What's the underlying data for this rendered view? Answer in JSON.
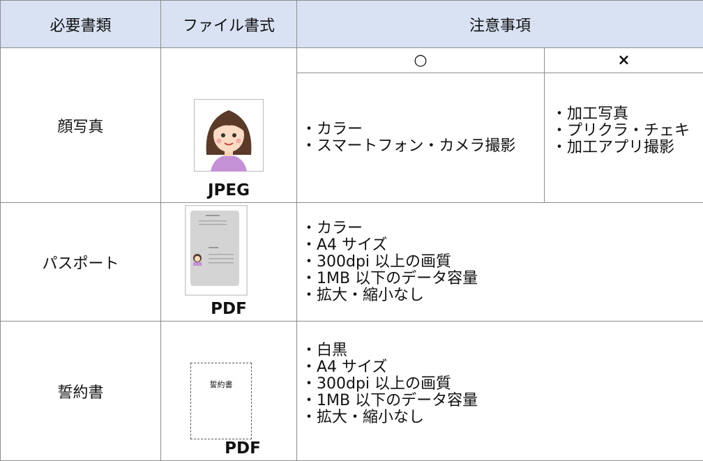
{
  "table": {
    "header": [
      "必要書類",
      "ファイル書式",
      "注意事項"
    ],
    "subheader": [
      "○",
      "×"
    ],
    "rows": [
      {
        "document": "顔写真",
        "format": "JPEG",
        "ok": [
          "・カラー",
          "・スマートフォン・カメラ撮影"
        ],
        "ng": [
          "・加工写真",
          "・プリクラ・チェキ",
          "・加工アプリ撮影"
        ]
      },
      {
        "document": "パスポート",
        "format": "PDF",
        "notes": [
          "・カラー",
          "・A4 サイズ",
          "・300dpi 以上の画質",
          "・1MB 以下のデータ容量",
          "・拡大・縮小なし"
        ]
      },
      {
        "document": "誓約書",
        "format": "PDF",
        "image_text": "誓約書",
        "notes": [
          "・白黒",
          "・A4 サイズ",
          "・300dpi 以上の画質",
          "・1MB 以下のデータ容量",
          "・拡大・縮小なし"
        ]
      }
    ]
  }
}
